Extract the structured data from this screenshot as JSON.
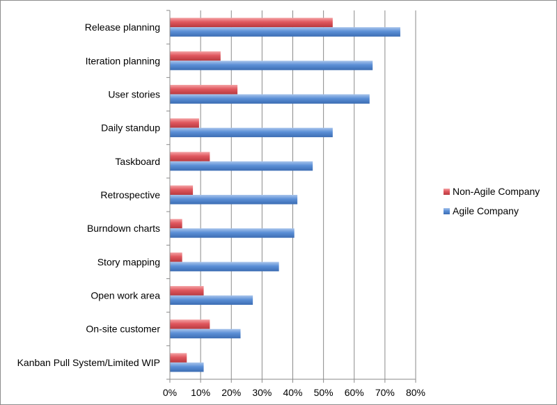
{
  "chart_data": {
    "type": "bar",
    "orientation": "horizontal",
    "categories": [
      "Release planning",
      "Iteration planning",
      "User stories",
      "Daily standup",
      "Taskboard",
      "Retrospective",
      "Burndown charts",
      "Story mapping",
      "Open work area",
      "On-site customer",
      "Kanban Pull System/Limited WIP"
    ],
    "series": [
      {
        "name": "Non-Agile Company",
        "color": "#e0575e",
        "values": [
          53,
          16.5,
          22,
          9.5,
          13,
          7.5,
          4,
          4,
          11,
          13,
          5.5
        ]
      },
      {
        "name": "Agile Company",
        "color": "#5b8fd6",
        "values": [
          75,
          66,
          65,
          53,
          46.5,
          41.5,
          40.5,
          35.5,
          27,
          23,
          11
        ]
      }
    ],
    "xlim": [
      0,
      80
    ],
    "xticks": [
      "0%",
      "10%",
      "20%",
      "30%",
      "40%",
      "50%",
      "60%",
      "70%",
      "80%"
    ],
    "grid": "vertical major gridlines",
    "legend_position": "right",
    "title": "",
    "xlabel": "",
    "ylabel": ""
  }
}
